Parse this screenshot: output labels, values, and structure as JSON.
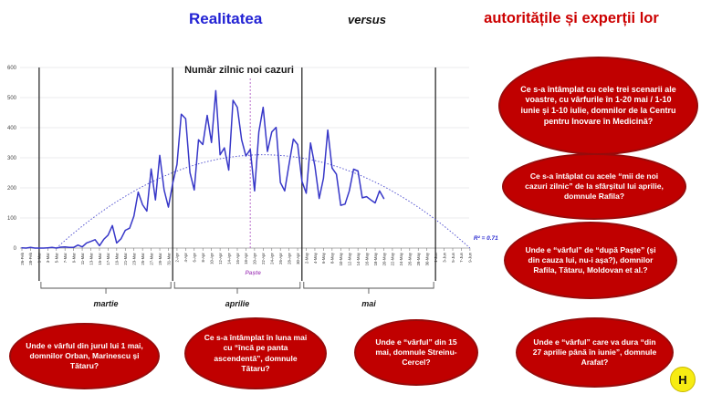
{
  "header": {
    "reality": "Realitatea",
    "versus": "versus",
    "authorities": "autoritățile și experții lor"
  },
  "colors": {
    "reality_blue": "#2222d4",
    "authorities_red": "#cc0000",
    "bubble_red": "#c00000",
    "line_blue": "#3737c8",
    "trend_blue": "#4545cc",
    "easter_purple": "#b05cc4",
    "r2_blue": "#2a2ad0",
    "month_line": "#1a1a1a",
    "logo_yellow": "#f7ec13"
  },
  "chart_data": {
    "type": "line",
    "title": "Număr zilnic noi cazuri",
    "ylim": [
      0,
      600
    ],
    "y_ticks": [
      0,
      100,
      200,
      300,
      400,
      500,
      600
    ],
    "x_tick_step_days": 2,
    "x_tick_labels": [
      "26-Feb",
      "28-Feb",
      "1-Mar",
      "3-Mar",
      "5-Mar",
      "7-Mar",
      "9-Mar",
      "11-Mar",
      "13-Mar",
      "15-Mar",
      "17-Mar",
      "19-Mar",
      "21-Mar",
      "23-Mar",
      "25-Mar",
      "27-Mar",
      "29-Mar",
      "31-Mar",
      "2-Apr",
      "4-Apr",
      "6-Apr",
      "8-Apr",
      "10-Apr",
      "12-Apr",
      "14-Apr",
      "16-Apr",
      "18-Apr",
      "20-Apr",
      "22-Apr",
      "24-Apr",
      "26-Apr",
      "28-Apr",
      "30-Apr",
      "2-May",
      "4-May",
      "6-May",
      "8-May",
      "10-May",
      "12-May",
      "14-May",
      "16-May",
      "18-May",
      "20-May",
      "22-May",
      "24-May",
      "26-May",
      "28-May",
      "30-May",
      "1-Jun",
      "3-Jun",
      "5-Jun",
      "7-Jun",
      "9-Jun"
    ],
    "dates": [
      "26-Feb",
      "27-Feb",
      "28-Feb",
      "29-Feb",
      "1-Mar",
      "2-Mar",
      "3-Mar",
      "4-Mar",
      "5-Mar",
      "6-Mar",
      "7-Mar",
      "8-Mar",
      "9-Mar",
      "10-Mar",
      "11-Mar",
      "12-Mar",
      "13-Mar",
      "14-Mar",
      "15-Mar",
      "16-Mar",
      "17-Mar",
      "18-Mar",
      "19-Mar",
      "20-Mar",
      "21-Mar",
      "22-Mar",
      "23-Mar",
      "24-Mar",
      "25-Mar",
      "26-Mar",
      "27-Mar",
      "28-Mar",
      "29-Mar",
      "30-Mar",
      "31-Mar",
      "1-Apr",
      "2-Apr",
      "3-Apr",
      "4-Apr",
      "5-Apr",
      "6-Apr",
      "7-Apr",
      "8-Apr",
      "9-Apr",
      "10-Apr",
      "11-Apr",
      "12-Apr",
      "13-Apr",
      "14-Apr",
      "15-Apr",
      "16-Apr",
      "17-Apr",
      "18-Apr",
      "19-Apr",
      "20-Apr",
      "21-Apr",
      "22-Apr",
      "23-Apr",
      "24-Apr",
      "25-Apr",
      "26-Apr",
      "27-Apr",
      "28-Apr",
      "29-Apr",
      "30-Apr",
      "1-May",
      "2-May",
      "3-May",
      "4-May",
      "5-May",
      "6-May",
      "7-May",
      "8-May",
      "9-May",
      "10-May",
      "11-May",
      "12-May",
      "13-May",
      "14-May",
      "15-May",
      "16-May",
      "17-May",
      "18-May",
      "19-May",
      "20-May"
    ],
    "values": [
      1,
      0,
      2,
      0,
      0,
      0,
      1,
      2,
      0,
      3,
      4,
      2,
      2,
      10,
      4,
      17,
      22,
      28,
      8,
      29,
      43,
      75,
      17,
      31,
      59,
      66,
      106,
      186,
      144,
      123,
      263,
      160,
      308,
      193,
      136,
      215,
      278,
      445,
      430,
      251,
      193,
      360,
      344,
      441,
      351,
      523,
      310,
      333,
      259,
      491,
      468,
      360,
      306,
      328,
      190,
      386,
      468,
      321,
      386,
      401,
      218,
      190,
      277,
      362,
      344,
      222,
      182,
      349,
      272,
      165,
      232,
      392,
      266,
      245,
      142,
      146,
      190,
      262,
      256,
      167,
      171,
      160,
      150,
      190,
      165
    ],
    "month_sections": [
      {
        "label": "martie",
        "start_day": 4,
        "end_day": 35
      },
      {
        "label": "aprilie",
        "start_day": 35,
        "end_day": 65
      },
      {
        "label": "mai",
        "start_day": 65,
        "end_day": 96
      }
    ],
    "trendline": {
      "style": "dotted",
      "peak_value": 310,
      "zero_day_start": 8,
      "zero_day_end": 104,
      "r2": 0.71
    },
    "annotations": {
      "easter": {
        "label": "Paște",
        "day": 53
      },
      "r2_label": "R² = 0.71"
    }
  },
  "bubbles": [
    {
      "text": "Ce s-a întâmplat cu cele trei scenarii ale voastre, cu vârfurile în 1-20 mai / 1-10 iunie și 1-10 iulie, domnilor de la Centru pentru Inovare în Medicină?"
    },
    {
      "text": "Ce s-a întâplat cu acele “mii de noi cazuri zilnic” de la sfârșitul lui aprilie, domnule Rafila?"
    },
    {
      "text": "Unde e “vârful” de “după Paște” (și din cauza lui, nu-i așa?), domnilor Rafila, Tătaru, Moldovan et al.?"
    },
    {
      "text": "Unde e vârful din jurul lui 1 mai, domnilor Orban, Marinescu și Tătaru?"
    },
    {
      "text": "Ce s-a întâmplat în luna mai cu “încă pe panta ascendentă”, domnule Tătaru?"
    },
    {
      "text": "Unde e “vârful” din 15 mai, domnule Streinu-Cercel?"
    },
    {
      "text": "Unde e “vârful” care va dura “din 27 aprilie până în iunie”, domnule Arafat?"
    }
  ],
  "logo": {
    "label": "H"
  }
}
